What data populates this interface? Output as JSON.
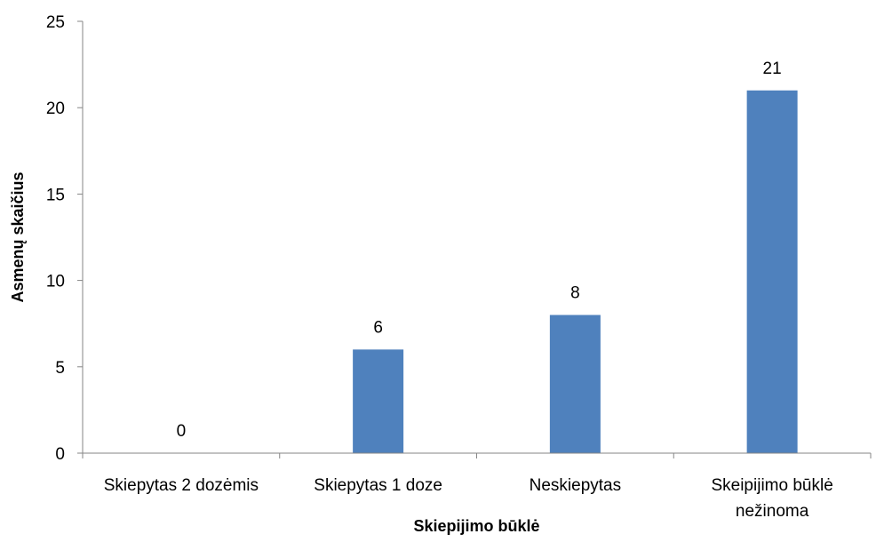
{
  "chart_data": {
    "type": "bar",
    "categories": [
      "Skiepytas 2 dozėmis",
      "Skiepytas 1 doze",
      "Neskiepytas",
      "Skeipijimo būklė nežinoma"
    ],
    "category_lines": [
      [
        "Skiepytas 2 dozėmis"
      ],
      [
        "Skiepytas 1 doze"
      ],
      [
        "Neskiepytas"
      ],
      [
        "Skeipijimo būklė",
        "nežinoma"
      ]
    ],
    "values": [
      0,
      6,
      8,
      21
    ],
    "data_labels": [
      "0",
      "6",
      "8",
      "21"
    ],
    "xlabel": "Skiepijimo būklė",
    "ylabel": "Asmenų skaičius",
    "ylim": [
      0,
      25
    ],
    "yticks": [
      0,
      5,
      10,
      15,
      20,
      25
    ],
    "bar_color": "#4F81BD",
    "grid": false,
    "legend": "none"
  }
}
